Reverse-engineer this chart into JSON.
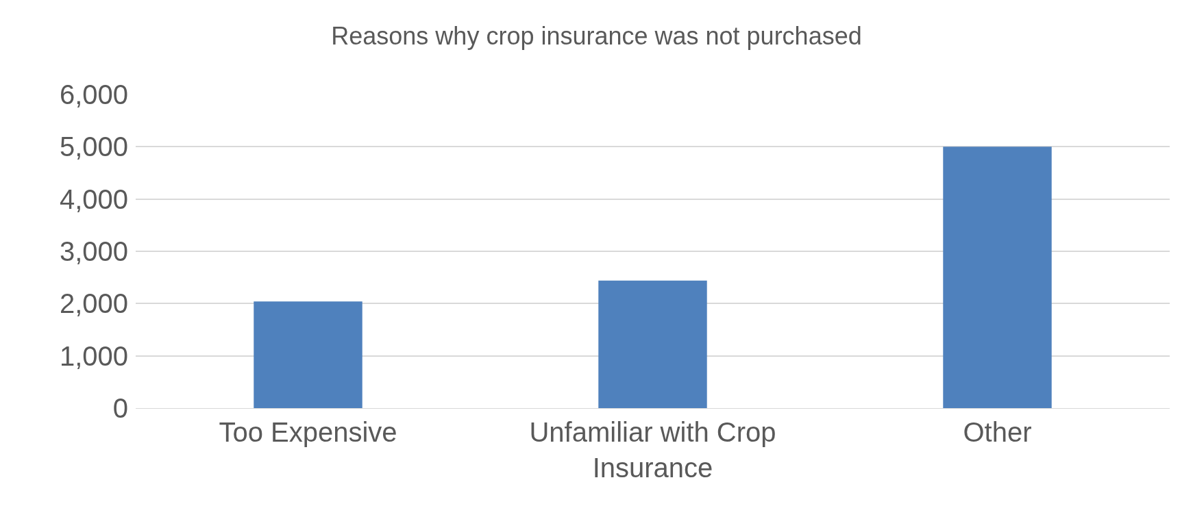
{
  "chart_data": {
    "type": "bar",
    "title": "Reasons why crop insurance was not purchased",
    "categories": [
      "Too Expensive",
      "Unfamiliar with Crop Insurance",
      "Other"
    ],
    "values": [
      2040,
      2440,
      5000
    ],
    "color": "#4f81bd",
    "ylim": [
      0,
      6000
    ],
    "yticks": [
      {
        "value": 0,
        "label": "0"
      },
      {
        "value": 1000,
        "label": "1,000"
      },
      {
        "value": 2000,
        "label": "2,000"
      },
      {
        "value": 3000,
        "label": "3,000"
      },
      {
        "value": 4000,
        "label": "4,000"
      },
      {
        "value": 5000,
        "label": "5,000"
      },
      {
        "value": 6000,
        "label": "6,000"
      }
    ],
    "grid": "y"
  }
}
